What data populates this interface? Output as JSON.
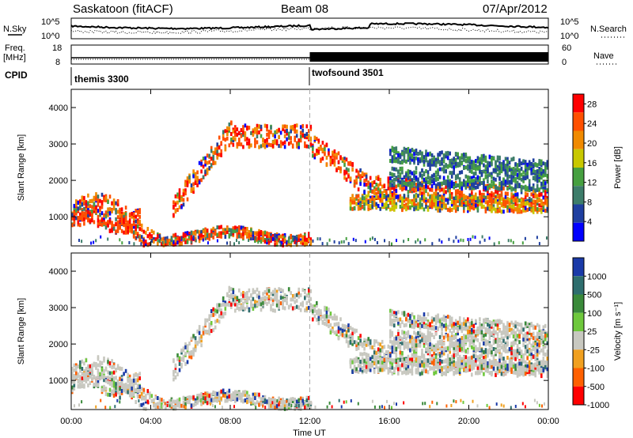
{
  "header": {
    "station": "Saskatoon (fitACF)",
    "beam": "Beam 08",
    "date": "07/Apr/2012"
  },
  "top_panel": {
    "left_labels": [
      "N.Sky",
      "Freq.",
      "[MHz]",
      "CPID"
    ],
    "right_labels": [
      "N.Search",
      "Nave"
    ],
    "nsky_ticks": [
      "10^5",
      "10^0"
    ],
    "freq_ticks": [
      "18",
      "8"
    ],
    "nave_ticks": [
      "60",
      "0"
    ],
    "nsearch_ticks": [
      "10^5",
      "10^0"
    ],
    "cpid_segments": [
      {
        "label": "themis 3300",
        "start": "00:00",
        "end": "12:00"
      },
      {
        "label": "twofsound 3501",
        "start": "12:00",
        "end": "24:00"
      }
    ]
  },
  "chart_data": [
    {
      "type": "heatmap",
      "title": "Power",
      "xlabel": "",
      "ylabel": "Slant Range [km]",
      "x_ticks": [
        "00:00",
        "04:00",
        "08:00",
        "12:00",
        "16:00",
        "20:00",
        "00:00"
      ],
      "xlim": [
        0,
        24
      ],
      "y_ticks": [
        "1000",
        "2000",
        "3000",
        "4000"
      ],
      "ylim": [
        200,
        4500
      ],
      "colorbar_label": "Power [dB]",
      "colorbar_ticks": [
        "4",
        "8",
        "12",
        "16",
        "20",
        "24",
        "28"
      ],
      "colorbar_range": [
        0,
        30
      ],
      "colors": [
        "#0000ff",
        "#1f3fa0",
        "#3d7d6a",
        "#46a040",
        "#c8c800",
        "#f08a00",
        "#ff5000",
        "#ff0000"
      ],
      "marked_time": "12:00"
    },
    {
      "type": "heatmap",
      "title": "Velocity",
      "xlabel": "Time UT",
      "ylabel": "Slant Range [km]",
      "x_ticks": [
        "00:00",
        "04:00",
        "08:00",
        "12:00",
        "16:00",
        "20:00",
        "00:00"
      ],
      "xlim": [
        0,
        24
      ],
      "y_ticks": [
        "1000",
        "2000",
        "3000",
        "4000"
      ],
      "ylim": [
        200,
        4500
      ],
      "colorbar_label": "Velocity [m s⁻¹]",
      "colorbar_ticks": [
        "1000",
        "500",
        "100",
        "25",
        "-25",
        "-100",
        "-500",
        "-1000"
      ],
      "colors": [
        "#1a3aa8",
        "#2e6e6e",
        "#3a8a3a",
        "#6ec83c",
        "#c8c8c0",
        "#f0a020",
        "#ff6000",
        "#ff0000"
      ],
      "marked_time": "12:00"
    }
  ]
}
